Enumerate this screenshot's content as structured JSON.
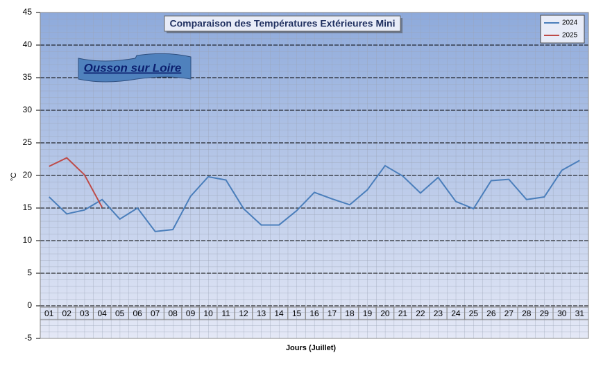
{
  "chart_data": {
    "type": "line",
    "title": "Comparaison des Températures Extérieures Mini",
    "annotation": "Ousson sur Loire",
    "y_label": "°C",
    "x_label": "Jours (Juillet)",
    "categories": [
      "01",
      "02",
      "03",
      "04",
      "05",
      "06",
      "07",
      "08",
      "09",
      "10",
      "11",
      "12",
      "13",
      "14",
      "15",
      "16",
      "17",
      "18",
      "19",
      "20",
      "21",
      "22",
      "23",
      "24",
      "25",
      "26",
      "27",
      "28",
      "29",
      "30",
      "31"
    ],
    "series": [
      {
        "name": "2024",
        "color": "#4a7ebb",
        "values": [
          16.7,
          14.1,
          14.7,
          16.3,
          13.3,
          15.0,
          11.4,
          11.7,
          16.8,
          19.8,
          19.3,
          14.9,
          12.4,
          12.4,
          14.6,
          17.4,
          16.4,
          15.5,
          17.8,
          21.5,
          19.9,
          17.3,
          19.7,
          16.0,
          14.9,
          19.2,
          19.4,
          16.3,
          16.7,
          20.8,
          22.3
        ]
      },
      {
        "name": "2025",
        "color": "#be4b48",
        "values": [
          21.4,
          22.7,
          20.1,
          15.1,
          null,
          null,
          null,
          null,
          null,
          null,
          null,
          null,
          null,
          null,
          null,
          null,
          null,
          null,
          null,
          null,
          null,
          null,
          null,
          null,
          null,
          null,
          null,
          null,
          null,
          null,
          null
        ]
      }
    ],
    "ylim": [
      -5,
      45
    ],
    "yticks": [
      -5,
      0,
      5,
      10,
      15,
      20,
      25,
      30,
      35,
      40,
      45
    ],
    "grid": true,
    "legend": "upper right"
  }
}
